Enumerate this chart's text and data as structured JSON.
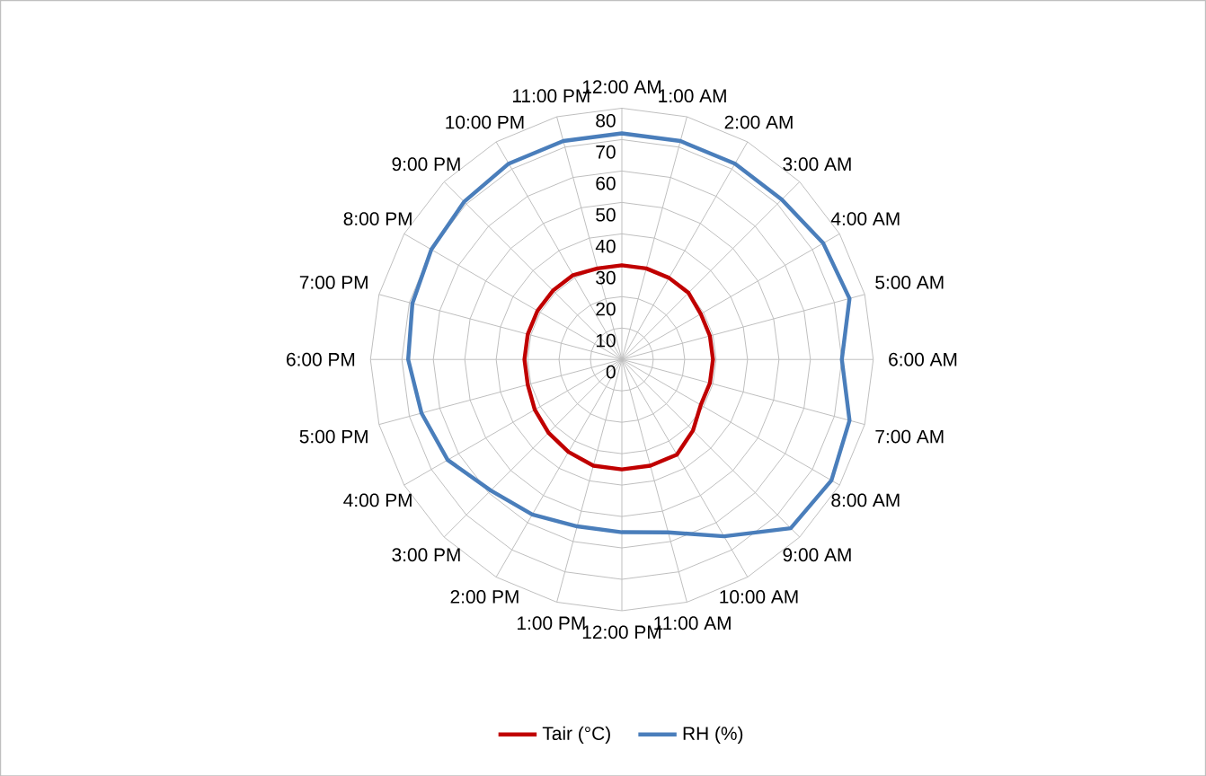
{
  "chart_data": {
    "type": "radar",
    "categories": [
      "12:00 AM",
      "1:00 AM",
      "2:00 AM",
      "3:00 AM",
      "4:00 AM",
      "5:00 AM",
      "6:00 AM",
      "7:00 AM",
      "8:00 AM",
      "9:00 AM",
      "10:00 AM",
      "11:00 AM",
      "12:00 PM",
      "1:00 PM",
      "2:00 PM",
      "3:00 PM",
      "4:00 PM",
      "5:00 PM",
      "6:00 PM",
      "7:00 PM",
      "8:00 PM",
      "9:00 PM",
      "10:00 PM",
      "11:00 PM"
    ],
    "series": [
      {
        "name": "Tair (°C)",
        "color": "#c00000",
        "values": [
          30,
          30,
          30,
          30,
          29,
          29,
          29,
          29,
          29,
          32,
          35,
          35,
          35,
          35,
          34,
          33,
          32,
          31,
          31,
          31,
          31,
          31,
          31,
          30
        ]
      },
      {
        "name": "RH (%)",
        "color": "#4a7ebb",
        "values": [
          72,
          72,
          72,
          72,
          74,
          75,
          70,
          75,
          77,
          76,
          65,
          57,
          55,
          55,
          57,
          59,
          64,
          66,
          68,
          69,
          70,
          71,
          72,
          72
        ]
      }
    ],
    "ylim": [
      0,
      80
    ],
    "yticks": [
      0,
      10,
      20,
      30,
      40,
      50,
      60,
      70,
      80
    ],
    "grid": true,
    "legend": "bottom",
    "marker": "none",
    "line_style": "solid"
  }
}
